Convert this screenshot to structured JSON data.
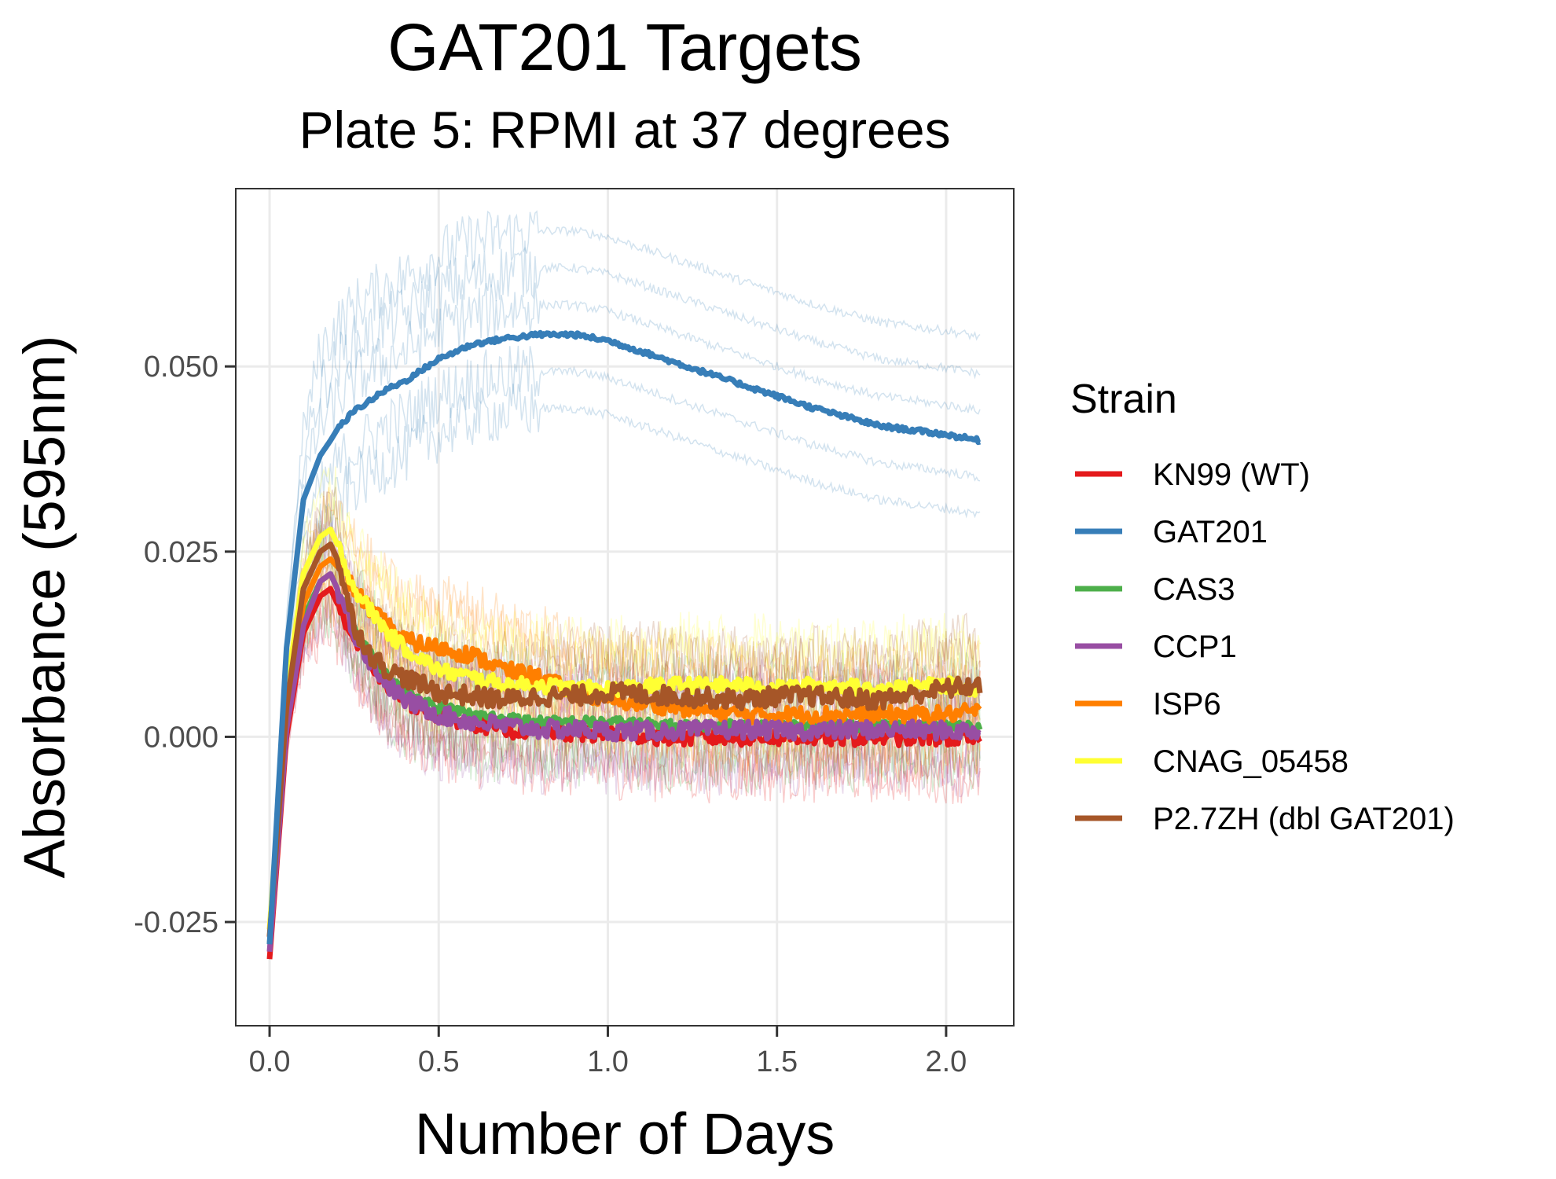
{
  "chart_data": {
    "type": "line",
    "title": "GAT201 Targets",
    "subtitle": "Plate 5: RPMI at 37 degrees",
    "xlabel": "Number of Days",
    "ylabel": "Absorbance (595nm)",
    "xlim": [
      -0.1,
      2.2
    ],
    "ylim": [
      -0.039,
      0.074
    ],
    "x_ticks": [
      0.0,
      0.5,
      1.0,
      1.5,
      2.0
    ],
    "x_tick_labels": [
      "0.0",
      "0.5",
      "1.0",
      "1.5",
      "2.0"
    ],
    "y_ticks": [
      -0.025,
      0.0,
      0.025,
      0.05
    ],
    "y_tick_labels": [
      "-0.025",
      "0.000",
      "0.025",
      "0.050"
    ],
    "grid": true,
    "legend": {
      "title": "Strain",
      "position": "right"
    },
    "x": [
      0.0,
      0.05,
      0.1,
      0.15,
      0.18,
      0.2,
      0.25,
      0.3,
      0.35,
      0.4,
      0.5,
      0.6,
      0.7,
      0.8,
      0.9,
      1.0,
      1.2,
      1.4,
      1.5,
      1.6,
      1.8,
      2.0,
      2.1
    ],
    "series": [
      {
        "name": "KN99 (WT)",
        "color": "#e41a1c",
        "values": [
          -0.03,
          0.0,
          0.014,
          0.019,
          0.02,
          0.018,
          0.013,
          0.01,
          0.007,
          0.005,
          0.003,
          0.002,
          0.001,
          0.001,
          0.0005,
          0.0005,
          0.0,
          0.0,
          0.0,
          0.0,
          0.0,
          0.0,
          -0.0005
        ]
      },
      {
        "name": "GAT201",
        "color": "#377eb8",
        "values": [
          -0.028,
          0.012,
          0.032,
          0.038,
          0.04,
          0.0415,
          0.044,
          0.0455,
          0.047,
          0.048,
          0.051,
          0.053,
          0.0538,
          0.0543,
          0.0543,
          0.0535,
          0.0505,
          0.0475,
          0.046,
          0.0445,
          0.042,
          0.0408,
          0.04
        ]
      },
      {
        "name": "CAS3",
        "color": "#4daf4a",
        "values": [
          -0.028,
          0.002,
          0.016,
          0.021,
          0.022,
          0.02,
          0.015,
          0.011,
          0.008,
          0.006,
          0.004,
          0.003,
          0.0025,
          0.002,
          0.002,
          0.002,
          0.0015,
          0.0015,
          0.0015,
          0.0015,
          0.0015,
          0.0015,
          0.0015
        ]
      },
      {
        "name": "CCP1",
        "color": "#984ea3",
        "values": [
          -0.029,
          0.001,
          0.015,
          0.021,
          0.022,
          0.02,
          0.014,
          0.01,
          0.007,
          0.005,
          0.003,
          0.002,
          0.0015,
          0.001,
          0.001,
          0.0008,
          0.0008,
          0.001,
          0.0008,
          0.0008,
          0.001,
          0.0008,
          0.0008
        ]
      },
      {
        "name": "ISP6",
        "color": "#ff7f00",
        "values": [
          -0.027,
          0.003,
          0.018,
          0.023,
          0.024,
          0.023,
          0.02,
          0.017,
          0.015,
          0.013,
          0.012,
          0.011,
          0.009,
          0.008,
          0.006,
          0.005,
          0.004,
          0.003,
          0.003,
          0.003,
          0.003,
          0.003,
          0.0035
        ]
      },
      {
        "name": "CNAG_05458",
        "color": "#ffff33",
        "values": [
          -0.026,
          0.006,
          0.022,
          0.027,
          0.028,
          0.026,
          0.02,
          0.017,
          0.014,
          0.012,
          0.009,
          0.008,
          0.007,
          0.007,
          0.0065,
          0.0065,
          0.007,
          0.007,
          0.0065,
          0.007,
          0.0065,
          0.007,
          0.0065
        ]
      },
      {
        "name": "P2.7ZH (dbl GAT201)",
        "color": "#a65628",
        "values": [
          -0.027,
          0.004,
          0.02,
          0.025,
          0.026,
          0.024,
          0.015,
          0.011,
          0.009,
          0.008,
          0.006,
          0.0055,
          0.005,
          0.0055,
          0.0055,
          0.006,
          0.0055,
          0.005,
          0.0055,
          0.0055,
          0.005,
          0.0065,
          0.007
        ]
      }
    ]
  }
}
